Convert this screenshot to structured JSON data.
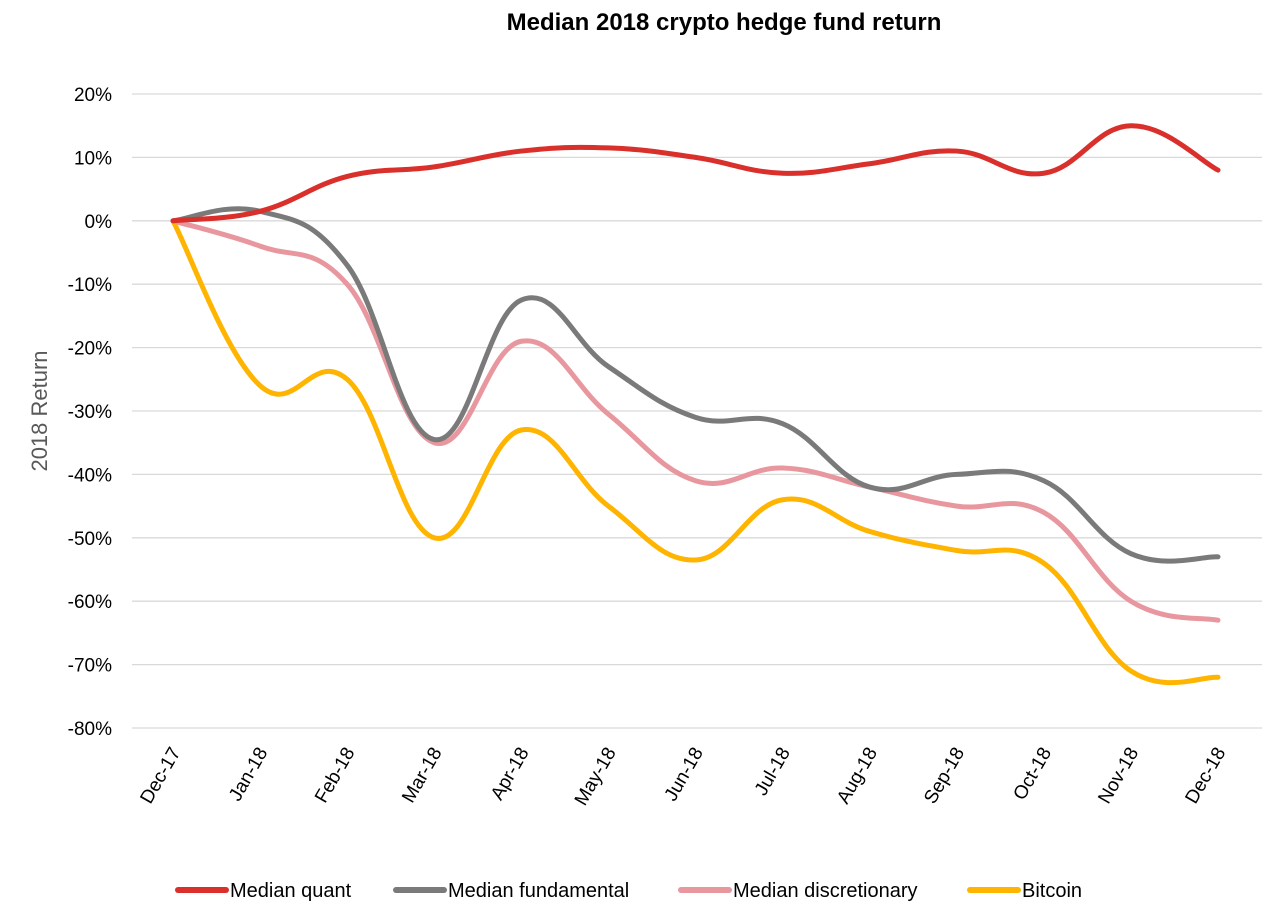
{
  "chart_data": {
    "type": "line",
    "title": "Median 2018 crypto hedge fund return",
    "ylabel": "2018 Return",
    "xlabel": "",
    "categories": [
      "Dec-17",
      "Jan-18",
      "Feb-18",
      "Mar-18",
      "Apr-18",
      "May-18",
      "Jun-18",
      "Jul-18",
      "Aug-18",
      "Sep-18",
      "Oct-18",
      "Nov-18",
      "Dec-18"
    ],
    "ylim": [
      -80,
      20
    ],
    "yticks": [
      20,
      10,
      0,
      -10,
      -20,
      -30,
      -40,
      -50,
      -60,
      -70,
      -80
    ],
    "ytick_labels": [
      "20%",
      "10%",
      "0%",
      "-10%",
      "-20%",
      "-30%",
      "-40%",
      "-50%",
      "-60%",
      "-70%",
      "-80%"
    ],
    "grid": true,
    "legend_position": "bottom",
    "series": [
      {
        "name": "Median quant",
        "color": "#d9302c",
        "values": [
          0,
          1.5,
          7,
          8.5,
          11,
          11.5,
          10,
          7.5,
          9,
          11,
          7.5,
          15,
          8
        ]
      },
      {
        "name": "Median fundamental",
        "color": "#7a7a7a",
        "values": [
          0,
          1.5,
          -7,
          -34.5,
          -12.5,
          -23,
          -31,
          -32,
          -42,
          -40,
          -41,
          -52.5,
          -53
        ]
      },
      {
        "name": "Median discretionary",
        "color": "#e8979f",
        "values": [
          0,
          -4,
          -10,
          -35,
          -19,
          -30.5,
          -41,
          -39,
          -42,
          -45,
          -46,
          -60,
          -63
        ]
      },
      {
        "name": "Bitcoin",
        "color": "#ffb400",
        "values": [
          0,
          -26,
          -25,
          -50,
          -33,
          -45,
          -53.5,
          -44,
          -49,
          -52,
          -54,
          -71,
          -72
        ]
      }
    ]
  }
}
